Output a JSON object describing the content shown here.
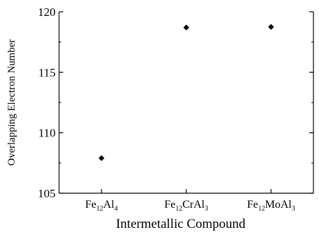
{
  "chart_data": {
    "type": "scatter",
    "categories": [
      {
        "base": "Fe",
        "sub1": "12",
        "mid": "Al",
        "sub2": "4"
      },
      {
        "base": "Fe",
        "sub1": "12",
        "mid": "CrAl",
        "sub2": "3"
      },
      {
        "base": "Fe",
        "sub1": "12",
        "mid": "MoAl",
        "sub2": "3"
      }
    ],
    "series": [
      {
        "values": [
          107.9,
          118.7,
          118.75
        ],
        "marker": "diamond",
        "color": "#000000"
      }
    ],
    "xlabel": "Intermetallic Compound",
    "ylabel": "Overlapping Electron Number",
    "ylim": [
      105,
      120
    ],
    "yticks": [
      105,
      110,
      115,
      120
    ],
    "grid": false
  }
}
